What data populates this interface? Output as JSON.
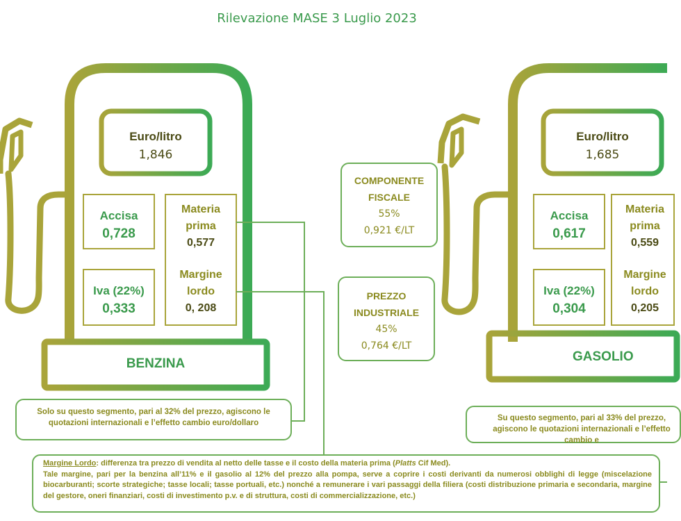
{
  "title": "Rilevazione MASE 3 Luglio 2023",
  "benzina": {
    "price_label": "Euro/litro",
    "price_value": "1,846",
    "accisa_label": "Accisa",
    "accisa_value": "0,728",
    "iva_label": "Iva (22%)",
    "iva_value": "0,333",
    "materia_label_1": "Materia",
    "materia_label_2": "prima",
    "materia_value": "0,577",
    "margine_label_1": "Margine",
    "margine_label_2": "lordo",
    "margine_value": "0, 208",
    "name": "BENZINA",
    "note": "Solo su questo segmento, pari al 32% del prezzo, agiscono le quotazioni internazionali e l’effetto cambio euro/dollaro"
  },
  "gasolio": {
    "price_label": "Euro/litro",
    "price_value": "1,685",
    "accisa_label": "Accisa",
    "accisa_value": "0,617",
    "iva_label": "Iva (22%)",
    "iva_value": "0,304",
    "materia_label_1": "Materia",
    "materia_label_2": "prima",
    "materia_value": "0,559",
    "margine_label_1": "Margine",
    "margine_label_2": "lordo",
    "margine_value": "0,205",
    "name": "GASOLIO",
    "note": "Su questo segmento, pari al 33% del prezzo, agiscono le quotazioni internazionali e l’effetto cambio e"
  },
  "fiscale": {
    "label_1": "COMPONENTE",
    "label_2": "FISCALE",
    "pct": "55%",
    "value": "0,921 €/LT"
  },
  "industriale": {
    "label_1": "PREZZO",
    "label_2": "INDUSTRIALE",
    "pct": "45%",
    "value": "0,764 €/LT"
  },
  "margine_note": {
    "term": "Margine Lordo",
    "text_1a": ": differenza tra prezzo di vendita al netto delle tasse e il costo della materia prima (",
    "italic": "Platts",
    "text_1b": " Cif Med).",
    "text_2": "Tale margine, pari per la benzina all’11% e il gasolio al 12% del prezzo alla pompa, serve a coprire i costi derivanti da numerosi obblighi di legge (miscelazione biocarburanti; scorte strategiche; tasse locali; tasse portuali, etc.) nonché a remunerare i vari passaggi della filiera (costi distribuzione primaria e secondaria, margine del gestore, oneri finanziari, costi di investimento p.v. e di struttura, costi di commercializzazione, etc.)"
  },
  "colors": {
    "olive": "#8a8a1e",
    "green": "#3a9a4c",
    "gradient_start": "#a9a43a",
    "gradient_end": "#3caa55"
  }
}
